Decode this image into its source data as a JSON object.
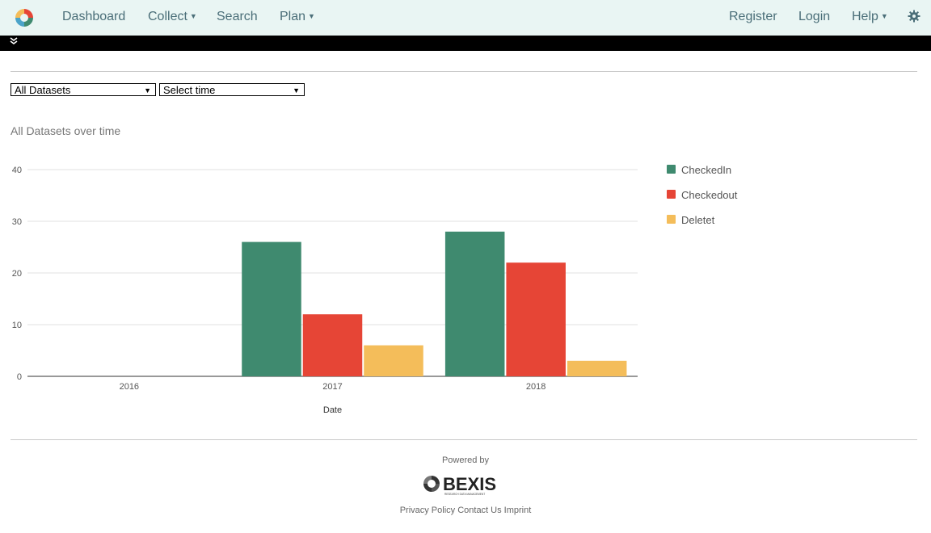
{
  "nav": {
    "items": [
      "Dashboard",
      "Collect",
      "Search",
      "Plan"
    ],
    "right": [
      "Register",
      "Login",
      "Help"
    ]
  },
  "filters": {
    "dataset_selected": "All Datasets",
    "time_selected": "Select time"
  },
  "chart_data": {
    "type": "bar",
    "title": "All Datasets over time",
    "xlabel": "Date",
    "ylabel": "",
    "categories": [
      "2016",
      "2017",
      "2018"
    ],
    "series": [
      {
        "name": "CheckedIn",
        "color": "#3f8a6f",
        "values": [
          0,
          26,
          28
        ]
      },
      {
        "name": "Checkedout",
        "color": "#e64536",
        "values": [
          0,
          12,
          22
        ]
      },
      {
        "name": "Deletet",
        "color": "#f4bd5a",
        "values": [
          0,
          6,
          3
        ]
      }
    ],
    "yticks": [
      0,
      10,
      20,
      30,
      40
    ],
    "ylim": [
      0,
      40
    ],
    "grid": true,
    "legend": "right"
  },
  "footer": {
    "powered_by": "Powered by",
    "brand": "BEXIS",
    "brand_tagline": "RESEARCH DATA MANAGEMENT",
    "links": "Privacy Policy Contact Us Imprint"
  }
}
